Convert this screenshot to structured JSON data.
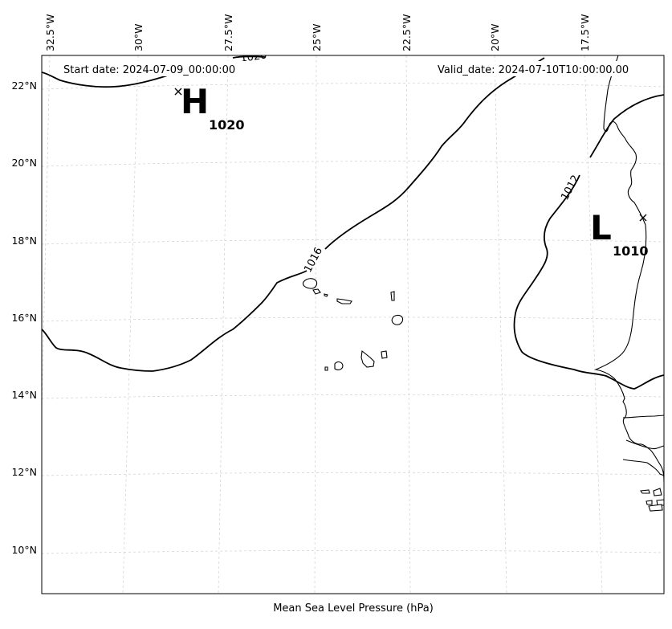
{
  "map": {
    "start_label": "Start date: 2024-07-09_00:00:00",
    "valid_label": "Valid_date: 2024-07-10T10:00:00.00",
    "xlabel": "Mean Sea Level Pressure (hPa)",
    "lon_ticks": [
      "32.5°W",
      "30°W",
      "27.5°W",
      "25°W",
      "22.5°W",
      "20°W",
      "17.5°W"
    ],
    "lat_ticks": [
      "22°N",
      "20°N",
      "18°N",
      "16°N",
      "14°N",
      "12°N",
      "10°N"
    ],
    "isobar_labels": [
      "1016",
      "1012",
      "1020"
    ],
    "high": {
      "letter": "H",
      "value": "1020"
    },
    "low": {
      "letter": "L",
      "value": "1010"
    }
  }
}
